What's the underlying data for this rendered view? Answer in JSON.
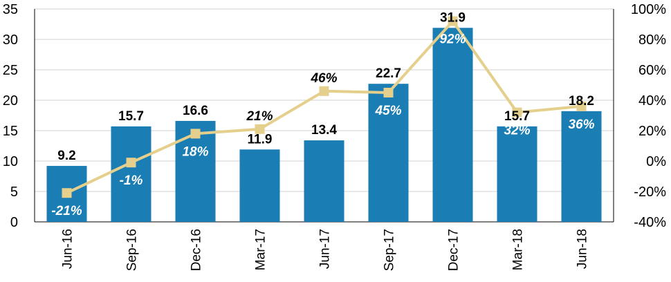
{
  "chart_data": {
    "type": "bar",
    "categories": [
      "Jun-16",
      "Sep-16",
      "Dec-16",
      "Mar-17",
      "Jun-17",
      "Sep-17",
      "Dec-17",
      "Mar-18",
      "Jun-18"
    ],
    "series": [
      {
        "type": "bar",
        "axis": "left",
        "values": [
          9.2,
          15.7,
          16.6,
          11.9,
          13.4,
          22.7,
          31.9,
          15.7,
          18.2
        ],
        "labels": [
          "9.2",
          "15.7",
          "16.6",
          "11.9",
          "13.4",
          "22.7",
          "31.9",
          "15.7",
          "18.2"
        ],
        "color": "#1a7db3"
      },
      {
        "type": "line",
        "axis": "right",
        "values": [
          -21,
          -1,
          18,
          21,
          46,
          45,
          92,
          32,
          36
        ],
        "labels": [
          "-21%",
          "-1%",
          "18%",
          "21%",
          "46%",
          "45%",
          "92%",
          "32%",
          "36%"
        ],
        "label_inside_bar": [
          true,
          true,
          true,
          false,
          false,
          true,
          true,
          true,
          true
        ],
        "color": "#e5cf8c"
      }
    ],
    "y_left": {
      "min": 0,
      "max": 35,
      "ticks": [
        "0",
        "5",
        "10",
        "15",
        "20",
        "25",
        "30",
        "35"
      ]
    },
    "y_right": {
      "min": -40,
      "max": 100,
      "ticks": [
        "-40%",
        "-20%",
        "0%",
        "20%",
        "40%",
        "60%",
        "80%",
        "100%"
      ]
    },
    "grid": true,
    "legend": false,
    "title": "",
    "xlabel": "",
    "ylabel": ""
  }
}
